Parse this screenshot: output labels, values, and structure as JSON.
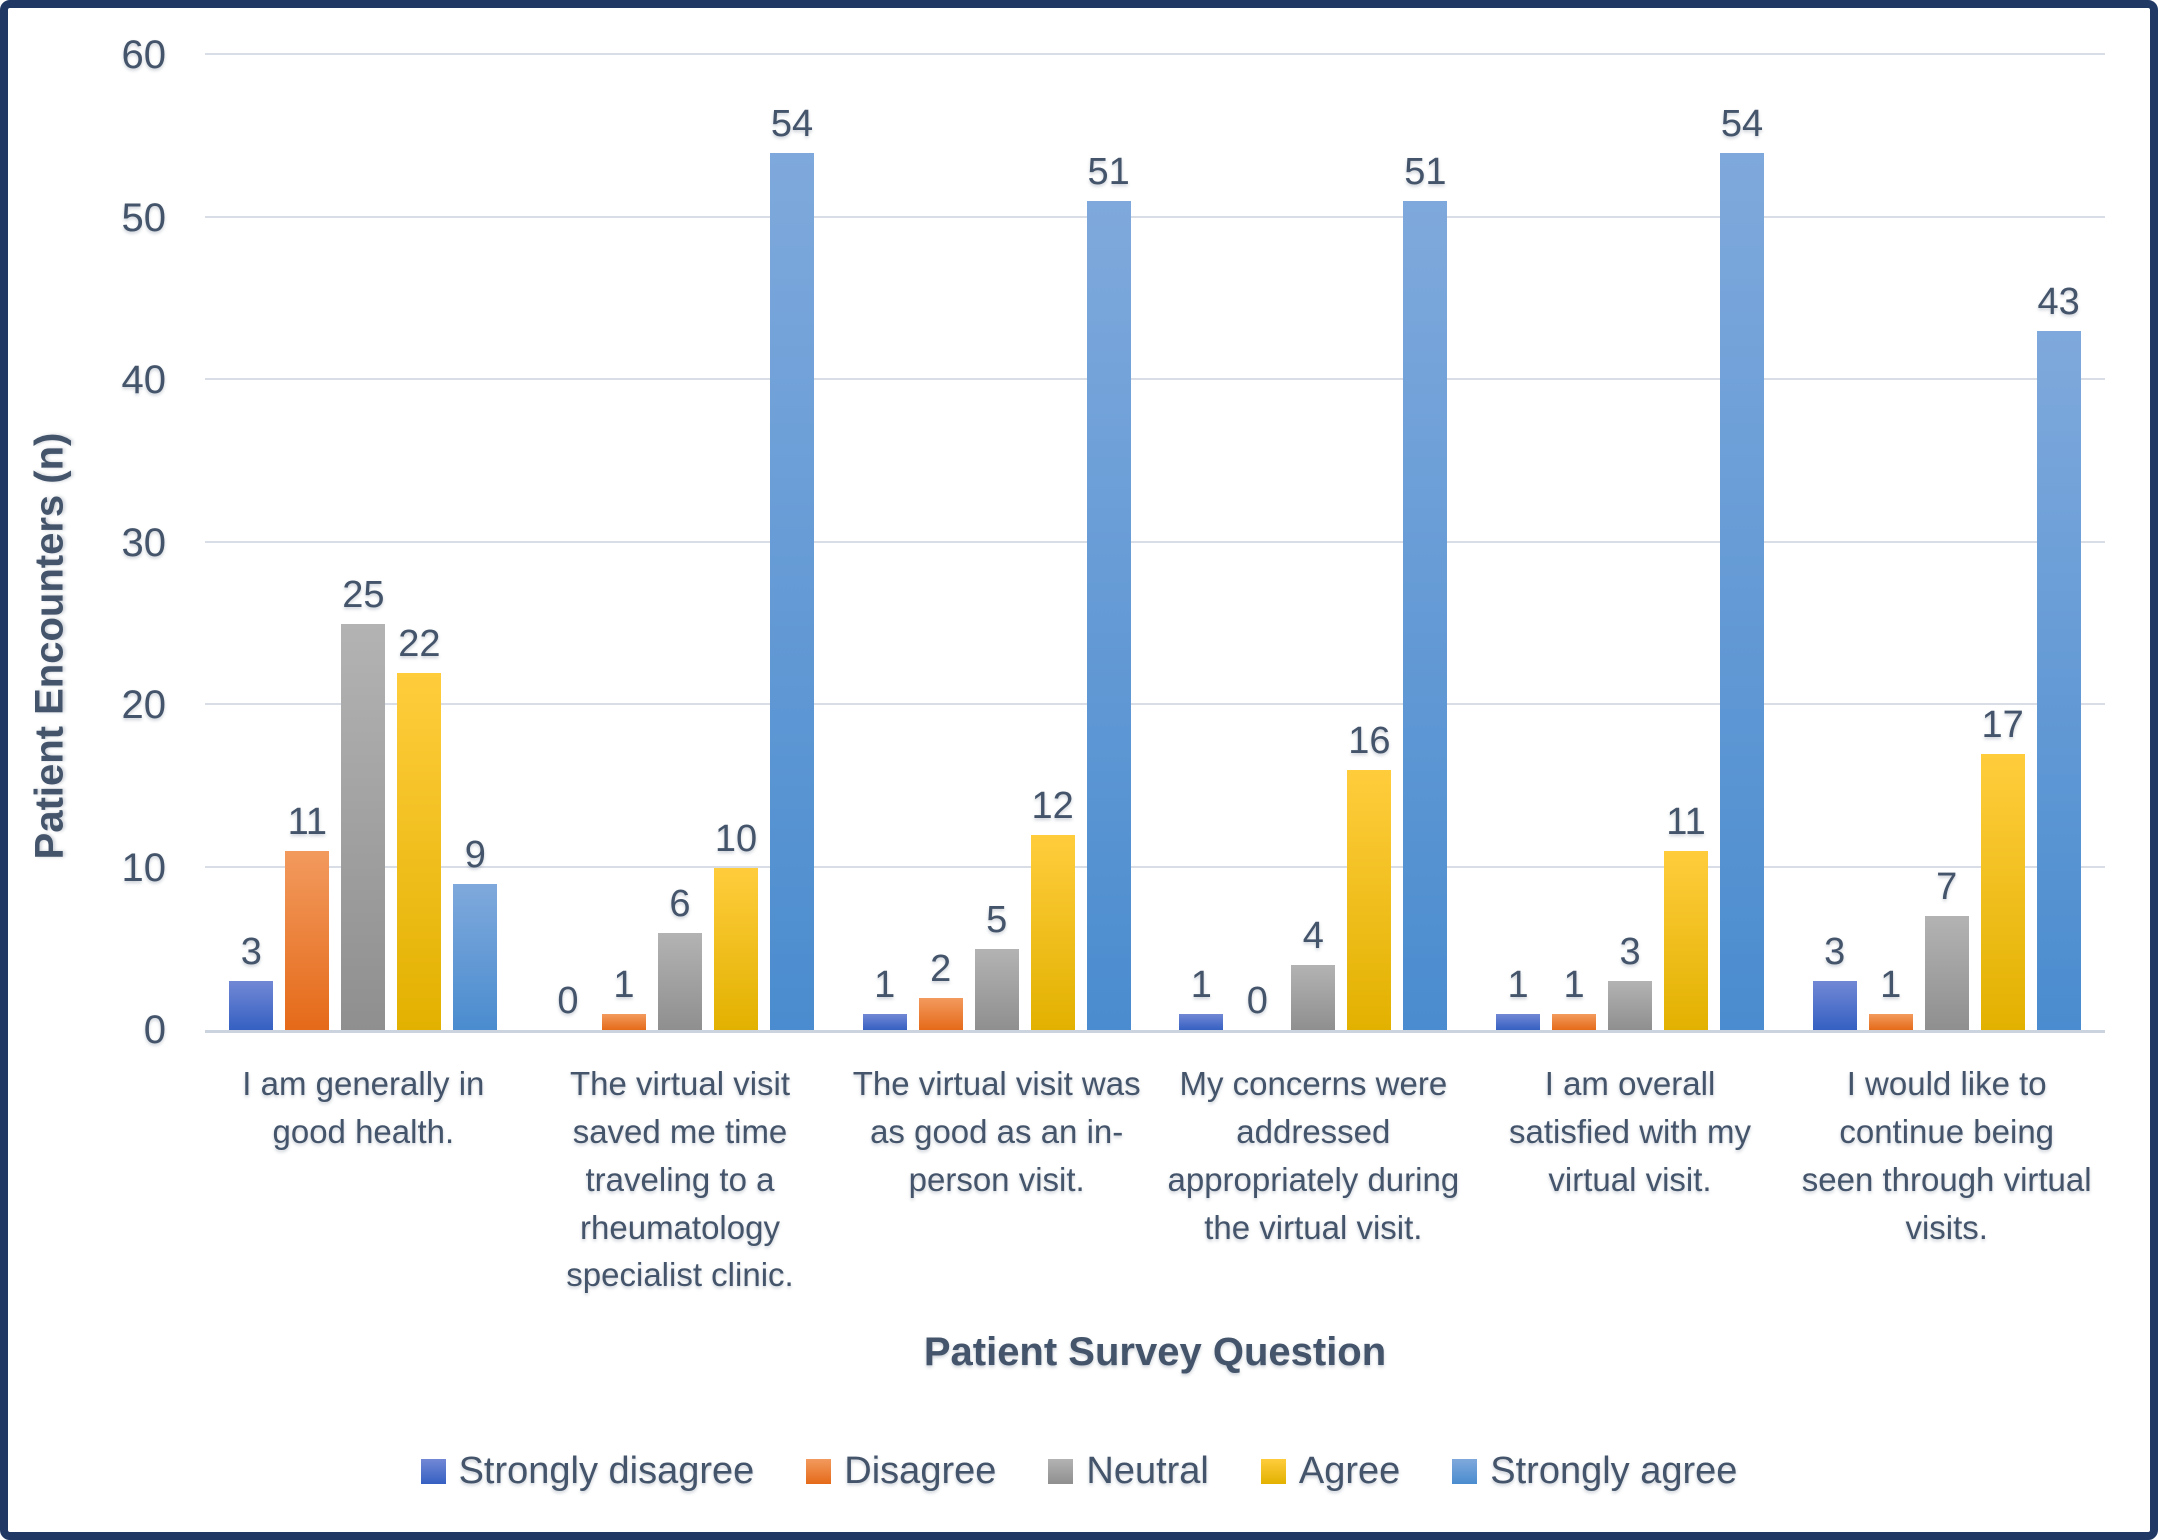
{
  "frame": {
    "border_color": "#1F3864",
    "background_color": "#FFFFFF",
    "text_color": "#44546A",
    "gridline_color": "#D9DDE6"
  },
  "chart_data": {
    "type": "bar",
    "title": "",
    "xlabel": "Patient Survey Question",
    "ylabel": "Patient Encounters (n)",
    "ylim": [
      0,
      60
    ],
    "yticks": [
      0,
      10,
      20,
      30,
      40,
      50,
      60
    ],
    "grid": true,
    "data_labels": true,
    "legend_position": "bottom",
    "categories": [
      "I am generally in good health.",
      "The virtual visit saved me time traveling to a rheumatology specialist clinic.",
      "The virtual visit was as good as an in-person visit.",
      "My concerns were addressed appropriately during the virtual visit.",
      "I am overall satisfied with my virtual visit.",
      "I would like to continue being seen through virtual visits."
    ],
    "series": [
      {
        "name": "Strongly disagree",
        "color": "#4472C4",
        "gradient_top": "#7288D5",
        "gradient_bottom": "#3560C2",
        "values": [
          3,
          0,
          1,
          1,
          1,
          3
        ]
      },
      {
        "name": "Disagree",
        "color": "#ED7D31",
        "gradient_top": "#F29A5E",
        "gradient_bottom": "#E56A19",
        "values": [
          11,
          1,
          2,
          0,
          1,
          1
        ]
      },
      {
        "name": "Neutral",
        "color": "#A5A5A5",
        "gradient_top": "#B3B3B3",
        "gradient_bottom": "#8F8F8F",
        "values": [
          25,
          6,
          5,
          4,
          3,
          7
        ]
      },
      {
        "name": "Agree",
        "color": "#FFC000",
        "gradient_top": "#FFCD3C",
        "gradient_bottom": "#E2B100",
        "values": [
          22,
          10,
          12,
          16,
          11,
          17
        ]
      },
      {
        "name": "Strongly agree",
        "color": "#5B9BD5",
        "gradient_top": "#7FA9DC",
        "gradient_bottom": "#4A8CCF",
        "values": [
          9,
          54,
          51,
          51,
          54,
          43
        ]
      }
    ]
  }
}
